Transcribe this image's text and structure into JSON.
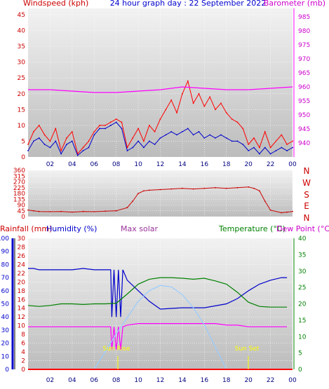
{
  "header": {
    "left_label": "Windspeed (kph)",
    "center_title": "24 hour graph day : 22 September 2022",
    "right_label": "Barometer (mb)"
  },
  "wind_dir_letters": [
    "N",
    "W",
    "S",
    "E",
    "N"
  ],
  "lower_header": {
    "rainfall": "Rainfall (mm)",
    "humidity": "Humidity (%)",
    "max_solar": "Max solar",
    "temperature": "Temperature (°C)",
    "dew_point": "Dew Point (°C)"
  },
  "annotations": {
    "sun_rise": "Sun Rise",
    "sun_set": "Sun Set"
  },
  "colors": {
    "wind": "#ff0000",
    "wind_avg": "#0000cc",
    "barometer": "#ff00ff",
    "direction": "#cc0000",
    "humidity": "#0000cc",
    "temperature": "#008000",
    "dew_point": "#ff00ff",
    "solar": "#99ccff",
    "sun_marker": "#ffff00",
    "rainfall": "#ff0000"
  },
  "chart_data": [
    {
      "type": "line",
      "title": "24 hour graph day : 22 September 2022",
      "ylabel": "Windspeed (kph)",
      "y2label": "Barometer (mb)",
      "x_ticks": [
        "02",
        "04",
        "06",
        "08",
        "10",
        "12",
        "14",
        "16",
        "18",
        "20",
        "22",
        "00"
      ],
      "ylim": [
        0,
        47
      ],
      "y_ticks": [
        0,
        5,
        10,
        15,
        20,
        25,
        30,
        35,
        40,
        45
      ],
      "y2lim": [
        935,
        988
      ],
      "y2_ticks": [
        940,
        945,
        950,
        955,
        960,
        965,
        970,
        975,
        980,
        985
      ],
      "grid": true,
      "series": [
        {
          "name": "Windspeed (kph)",
          "x": [
            0,
            0.5,
            1,
            1.5,
            2,
            2.5,
            3,
            3.5,
            4,
            4.5,
            5,
            5.5,
            6,
            6.5,
            7,
            7.5,
            8,
            8.5,
            9,
            9.5,
            10,
            10.5,
            11,
            11.5,
            12,
            12.5,
            13,
            13.5,
            14,
            14.5,
            15,
            15.5,
            16,
            16.5,
            17,
            17.5,
            18,
            18.5,
            19,
            19.5,
            20,
            20.5,
            21,
            21.5,
            22,
            22.5,
            23,
            23.5,
            24
          ],
          "values": [
            4,
            8,
            10,
            7,
            5,
            9,
            2,
            6,
            8,
            1,
            3,
            5,
            8,
            10,
            10,
            11,
            12,
            11,
            3,
            6,
            9,
            5,
            10,
            8,
            12,
            15,
            18,
            14,
            20,
            24,
            17,
            20,
            16,
            19,
            15,
            17,
            14,
            12,
            11,
            9,
            4,
            6,
            3,
            8,
            3,
            5,
            7,
            4,
            5
          ]
        },
        {
          "name": "Windspeed average",
          "x": [
            0,
            0.5,
            1,
            1.5,
            2,
            2.5,
            3,
            3.5,
            4,
            4.5,
            5,
            5.5,
            6,
            6.5,
            7,
            7.5,
            8,
            8.5,
            9,
            9.5,
            10,
            10.5,
            11,
            11.5,
            12,
            12.5,
            13,
            13.5,
            14,
            14.5,
            15,
            15.5,
            16,
            16.5,
            17,
            17.5,
            18,
            18.5,
            19,
            19.5,
            20,
            20.5,
            21,
            21.5,
            22,
            22.5,
            23,
            23.5,
            24
          ],
          "values": [
            2,
            5,
            6,
            4,
            3,
            5,
            1,
            4,
            5,
            0.5,
            2,
            3,
            7,
            9,
            9,
            10,
            11,
            9,
            2,
            3,
            5,
            3,
            5,
            4,
            6,
            7,
            8,
            7,
            8,
            9,
            7,
            8,
            6,
            7,
            6,
            7,
            6,
            5,
            5,
            4,
            2,
            3,
            1,
            3,
            1,
            2,
            3,
            2,
            3
          ]
        },
        {
          "name": "Barometer (mb)",
          "axis": "y2",
          "x": [
            0,
            2,
            4,
            6,
            8,
            10,
            12,
            14,
            16,
            18,
            20,
            22,
            24
          ],
          "values": [
            959,
            959,
            958.5,
            958,
            958,
            958.5,
            959,
            960,
            959.5,
            959,
            959,
            959.5,
            960
          ]
        }
      ]
    },
    {
      "type": "line",
      "title": "",
      "ylabel": "",
      "ylim": [
        0,
        360
      ],
      "y_ticks": [
        0,
        45,
        90,
        135,
        180,
        225,
        270,
        315,
        360
      ],
      "grid": true,
      "series": [
        {
          "name": "Wind direction",
          "x": [
            0,
            0.5,
            1,
            2,
            3,
            4,
            5,
            6,
            7,
            8,
            9,
            9.5,
            10,
            10.5,
            11,
            12,
            13,
            14,
            15,
            16,
            17,
            18,
            19,
            20,
            20.5,
            21,
            21.5,
            22,
            23,
            23.5,
            24
          ],
          "values": [
            50,
            45,
            40,
            38,
            40,
            35,
            40,
            38,
            42,
            45,
            70,
            120,
            180,
            200,
            205,
            210,
            215,
            220,
            215,
            220,
            225,
            220,
            225,
            230,
            220,
            200,
            120,
            50,
            30,
            35,
            40
          ]
        }
      ]
    },
    {
      "type": "line",
      "title": "",
      "ylabel": "Humidity (%)",
      "ylim": [
        0,
        100
      ],
      "y_ticks": [
        0,
        10,
        20,
        30,
        40,
        50,
        60,
        70,
        80,
        90,
        100
      ],
      "y_rain_ticks": [
        0,
        2,
        4,
        6,
        8,
        10,
        12,
        14,
        16,
        18,
        20,
        22,
        24,
        26,
        28,
        30
      ],
      "y2label": "Temperature (°C)",
      "y2lim": [
        0,
        40
      ],
      "y2_ticks": [
        0,
        5,
        10,
        15,
        20,
        25,
        30,
        35,
        40
      ],
      "grid": true,
      "series": [
        {
          "name": "Humidity (%)",
          "x": [
            0,
            0.5,
            1,
            2,
            3,
            4,
            5,
            6,
            7,
            7.5,
            7.6,
            7.8,
            8,
            8.2,
            8.4,
            8.6,
            9,
            10,
            11,
            12,
            14,
            16,
            18,
            19,
            20,
            21,
            22,
            23,
            23.5
          ],
          "values": [
            77,
            77,
            76,
            76,
            76,
            76,
            77,
            76,
            76,
            76,
            40,
            76,
            40,
            76,
            40,
            76,
            68,
            60,
            52,
            46,
            47,
            47,
            50,
            54,
            60,
            65,
            68,
            70,
            70
          ]
        },
        {
          "name": "Temperature (°C)",
          "axis": "y2",
          "x": [
            0,
            1,
            2,
            3,
            4,
            5,
            6,
            7,
            8,
            9,
            10,
            11,
            12,
            13,
            14,
            15,
            16,
            17,
            18,
            19,
            20,
            21,
            22,
            23,
            23.5
          ],
          "values": [
            19.5,
            19.2,
            19.5,
            20,
            20,
            19.8,
            20,
            20,
            20.2,
            23,
            26,
            27.5,
            28,
            28,
            27.8,
            27.5,
            27.8,
            27,
            26,
            23.5,
            20.5,
            19.2,
            19,
            19,
            19
          ]
        },
        {
          "name": "Dew Point (°C)",
          "axis": "y2",
          "x": [
            0,
            1,
            2,
            3,
            4,
            5,
            6,
            7,
            7.5,
            7.6,
            7.8,
            8,
            8.2,
            8.4,
            8.6,
            9,
            10,
            11,
            12,
            13,
            14,
            15,
            16,
            17,
            18,
            19,
            20,
            21,
            22,
            23,
            23.5
          ],
          "values": [
            13,
            13,
            13,
            13,
            13,
            13,
            13,
            13,
            13,
            6,
            13,
            6,
            13,
            6,
            13,
            13.5,
            14,
            14,
            14,
            14,
            14,
            14,
            14,
            14,
            13.5,
            13.5,
            13,
            13,
            13,
            13,
            13
          ]
        },
        {
          "name": "Max solar",
          "x": [
            6,
            8,
            10,
            11,
            12,
            13,
            14,
            15,
            16,
            17,
            18
          ],
          "values": [
            0,
            27,
            52,
            60,
            64,
            63,
            57,
            47,
            34,
            17,
            0
          ]
        },
        {
          "name": "Rainfall (mm)",
          "x": [
            0,
            24
          ],
          "values": [
            0,
            0
          ]
        }
      ]
    }
  ]
}
